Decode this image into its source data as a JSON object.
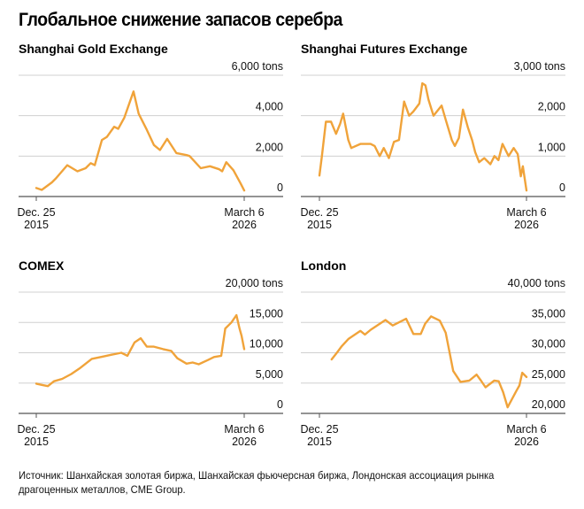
{
  "title": "Глобальное снижение запасов серебра",
  "source": "Источник: Шанхайская золотая биржа, Шанхайская фьючерсная биржа, Лондонская ассоциация рынка драгоценных металлов, CME Group.",
  "colors": {
    "line": "#f0a33a",
    "grid": "#d0d0d0",
    "axis": "#555555"
  },
  "chart_data": [
    {
      "type": "line",
      "title": "Shanghai Gold Exchange",
      "unit": "tons",
      "ylim": [
        0,
        6000
      ],
      "yticks": [
        0,
        2000,
        4000,
        6000
      ],
      "ytick_labels": [
        "0",
        "2,000",
        "4,000",
        "6,000 tons"
      ],
      "xlim": [
        2015.98,
        2026.18
      ],
      "xtick_labels": [
        [
          "Dec. 25",
          "2015"
        ],
        [
          "March 6",
          "2026"
        ]
      ],
      "grid": true,
      "x": [
        2015.98,
        2016.25,
        2016.75,
        2016.95,
        2017.5,
        2018.0,
        2018.4,
        2018.65,
        2018.85,
        2019.2,
        2019.45,
        2019.8,
        2020.0,
        2020.3,
        2020.75,
        2021.0,
        2021.4,
        2021.75,
        2022.05,
        2022.4,
        2022.85,
        2023.35,
        2023.5,
        2024.05,
        2024.5,
        2024.95,
        2025.1,
        2025.3,
        2025.65,
        2026.0,
        2026.18
      ],
      "y": [
        420,
        330,
        700,
        900,
        1550,
        1250,
        1400,
        1650,
        1550,
        2800,
        2950,
        3450,
        3350,
        3900,
        5200,
        4100,
        3300,
        2550,
        2300,
        2850,
        2150,
        2050,
        2000,
        1400,
        1500,
        1350,
        1250,
        1700,
        1300,
        650,
        300
      ]
    },
    {
      "type": "line",
      "title": "Shanghai Futures Exchange",
      "unit": "tons",
      "ylim": [
        0,
        3000
      ],
      "yticks": [
        0,
        1000,
        2000,
        3000
      ],
      "ytick_labels": [
        "0",
        "1,000",
        "2,000",
        "3,000 tons"
      ],
      "xlim": [
        2015.98,
        2026.18
      ],
      "xtick_labels": [
        [
          "Dec. 25",
          "2015"
        ],
        [
          "March 6",
          "2026"
        ]
      ],
      "grid": true,
      "x": [
        2015.98,
        2016.1,
        2016.3,
        2016.55,
        2016.8,
        2017.0,
        2017.15,
        2017.4,
        2017.55,
        2018.0,
        2018.5,
        2018.7,
        2018.95,
        2019.15,
        2019.4,
        2019.65,
        2019.9,
        2020.15,
        2020.4,
        2020.6,
        2020.9,
        2021.05,
        2021.2,
        2021.35,
        2021.6,
        2022.0,
        2022.2,
        2022.5,
        2022.65,
        2022.85,
        2023.05,
        2023.3,
        2023.5,
        2023.65,
        2023.85,
        2024.1,
        2024.4,
        2024.6,
        2024.8,
        2025.0,
        2025.3,
        2025.55,
        2025.75,
        2025.9,
        2026.0,
        2026.18
      ],
      "y": [
        520,
        1000,
        1850,
        1850,
        1550,
        1800,
        2050,
        1400,
        1200,
        1300,
        1300,
        1250,
        1000,
        1200,
        950,
        1350,
        1400,
        2350,
        2000,
        2100,
        2300,
        2800,
        2750,
        2400,
        2000,
        2250,
        1900,
        1400,
        1250,
        1450,
        2150,
        1700,
        1400,
        1100,
        850,
        950,
        800,
        1000,
        900,
        1300,
        1000,
        1200,
        1050,
        500,
        750,
        150
      ]
    },
    {
      "type": "line",
      "title": "COMEX",
      "unit": "tons",
      "ylim": [
        0,
        20000
      ],
      "yticks": [
        0,
        5000,
        10000,
        15000,
        20000
      ],
      "ytick_labels": [
        "0",
        "5,000",
        "10,000",
        "15,000",
        "20,000 tons"
      ],
      "xlim": [
        2015.98,
        2026.18
      ],
      "xtick_labels": [
        [
          "Dec. 25",
          "2015"
        ],
        [
          "March 6",
          "2026"
        ]
      ],
      "grid": true,
      "x": [
        2015.98,
        2016.25,
        2016.55,
        2016.85,
        2017.25,
        2017.7,
        2018.1,
        2018.7,
        2019.3,
        2019.7,
        2020.15,
        2020.45,
        2020.8,
        2021.1,
        2021.4,
        2021.75,
        2022.2,
        2022.6,
        2022.9,
        2023.35,
        2023.65,
        2023.95,
        2024.4,
        2024.7,
        2025.05,
        2025.25,
        2025.55,
        2025.8,
        2025.95,
        2026.05,
        2026.18
      ],
      "y": [
        4900,
        4700,
        4500,
        5300,
        5700,
        6500,
        7400,
        9000,
        9400,
        9700,
        10000,
        9500,
        11700,
        12400,
        11000,
        11000,
        10600,
        10300,
        9100,
        8200,
        8400,
        8100,
        8800,
        9300,
        9500,
        14000,
        15000,
        16200,
        14000,
        12800,
        10600
      ]
    },
    {
      "type": "line",
      "title": "London",
      "unit": "tons",
      "ylim": [
        20000,
        40000
      ],
      "yticks": [
        20000,
        25000,
        30000,
        35000,
        40000
      ],
      "ytick_labels": [
        "20,000",
        "25,000",
        "30,000",
        "35,000",
        "40,000 tons"
      ],
      "xlim": [
        2015.98,
        2026.18
      ],
      "xtick_labels": [
        [
          "Dec. 25",
          "2015"
        ],
        [
          "March 6",
          "2026"
        ]
      ],
      "grid": true,
      "x": [
        2016.58,
        2016.84,
        2017.06,
        2017.42,
        2018.0,
        2018.22,
        2018.51,
        2018.87,
        2019.23,
        2019.59,
        2020.25,
        2020.61,
        2020.97,
        2021.19,
        2021.48,
        2021.91,
        2022.2,
        2022.57,
        2022.93,
        2023.36,
        2023.72,
        2023.94,
        2024.16,
        2024.59,
        2024.81,
        2025.03,
        2025.25,
        2025.68,
        2025.83,
        2025.97,
        2026.18
      ],
      "y": [
        28900,
        30000,
        31000,
        32300,
        33600,
        33000,
        33800,
        34600,
        35400,
        34500,
        35600,
        33100,
        33100,
        34800,
        36000,
        35300,
        33300,
        27000,
        25200,
        25400,
        26400,
        25400,
        24300,
        25400,
        25300,
        23500,
        21000,
        23700,
        24600,
        26700,
        26000
      ]
    }
  ]
}
